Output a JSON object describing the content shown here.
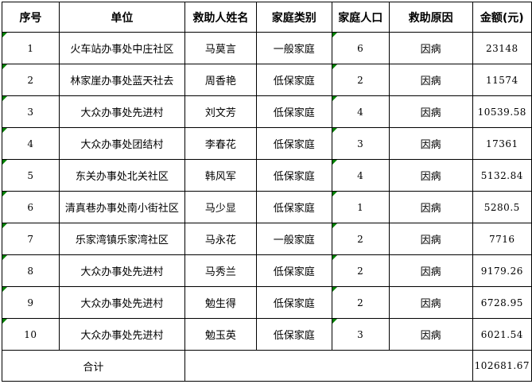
{
  "table": {
    "headers": [
      "序号",
      "单位",
      "救助人姓名",
      "家庭类别",
      "家庭人口",
      "救助原因",
      "金额(元)"
    ],
    "rows": [
      {
        "no": "1",
        "unit": "火车站办事处中庄社区",
        "name": "马莫言",
        "family_type": "一般家庭",
        "family_size": "6",
        "reason": "因病",
        "amount": "23148"
      },
      {
        "no": "2",
        "unit": "林家崖办事处蓝天社去",
        "name": "周香艳",
        "family_type": "低保家庭",
        "family_size": "2",
        "reason": "因病",
        "amount": "11574"
      },
      {
        "no": "3",
        "unit": "大众办事处先进村",
        "name": "刘文芳",
        "family_type": "低保家庭",
        "family_size": "4",
        "reason": "因病",
        "amount": "10539.58"
      },
      {
        "no": "4",
        "unit": "大众办事处团结村",
        "name": "李春花",
        "family_type": "低保家庭",
        "family_size": "3",
        "reason": "因病",
        "amount": "17361"
      },
      {
        "no": "5",
        "unit": "东关办事处北关社区",
        "name": "韩风军",
        "family_type": "低保家庭",
        "family_size": "4",
        "reason": "因病",
        "amount": "5132.84"
      },
      {
        "no": "6",
        "unit": "清真巷办事处南小街社区",
        "name": "马少显",
        "family_type": "低保家庭",
        "family_size": "1",
        "reason": "因病",
        "amount": "5280.5"
      },
      {
        "no": "7",
        "unit": "乐家湾镇乐家湾社区",
        "name": "马永花",
        "family_type": "一般家庭",
        "family_size": "2",
        "reason": "因病",
        "amount": "7716"
      },
      {
        "no": "8",
        "unit": "大众办事处先进村",
        "name": "马秀兰",
        "family_type": "低保家庭",
        "family_size": "2",
        "reason": "因病",
        "amount": "9179.26"
      },
      {
        "no": "9",
        "unit": "大众办事处先进村",
        "name": "勉生得",
        "family_type": "低保家庭",
        "family_size": "2",
        "reason": "因病",
        "amount": "6728.95"
      },
      {
        "no": "10",
        "unit": "大众办事处先进村",
        "name": "勉玉英",
        "family_type": "低保家庭",
        "family_size": "3",
        "reason": "因病",
        "amount": "6021.54"
      }
    ],
    "footer": {
      "label": "合计",
      "total": "102681.67"
    }
  },
  "colors": {
    "background": "#ffffff",
    "text": "#000000",
    "border": "#000000",
    "error_indicator": "#008000"
  }
}
